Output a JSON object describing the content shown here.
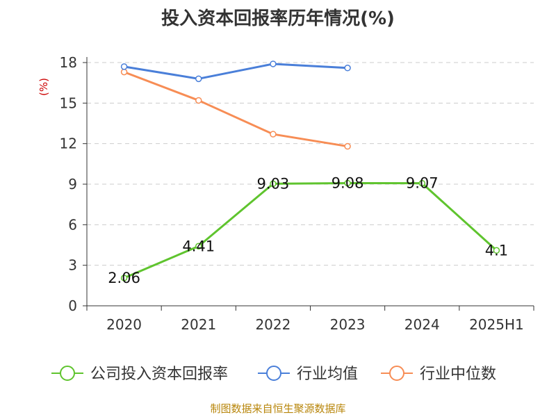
{
  "title": "投入资本回报率历年情况(%)",
  "source": "制图数据来自恒生聚源数据库",
  "chart_data": {
    "type": "line",
    "title": "投入资本回报率历年情况(%)",
    "ylabel": "(%)",
    "xlabel": "",
    "ylim": [
      0,
      18
    ],
    "yticks": [
      0,
      3,
      6,
      9,
      12,
      15,
      18
    ],
    "categories": [
      "2020",
      "2021",
      "2022",
      "2023",
      "2024",
      "2025H1"
    ],
    "grid": true,
    "legend_position": "bottom",
    "series": [
      {
        "name": "公司投入资本回报率",
        "color": "#5fc42e",
        "values": [
          2.06,
          4.41,
          9.03,
          9.08,
          9.07,
          4.1
        ],
        "labels": [
          "2.06",
          "4.41",
          "9.03",
          "9.08",
          "9.07",
          "4.1"
        ]
      },
      {
        "name": "行业均值",
        "color": "#4a7fd9",
        "values": [
          17.7,
          16.8,
          17.9,
          17.6,
          null,
          null
        ]
      },
      {
        "name": "行业中位数",
        "color": "#f78d55",
        "values": [
          17.3,
          15.2,
          12.7,
          11.8,
          null,
          null
        ]
      }
    ]
  }
}
